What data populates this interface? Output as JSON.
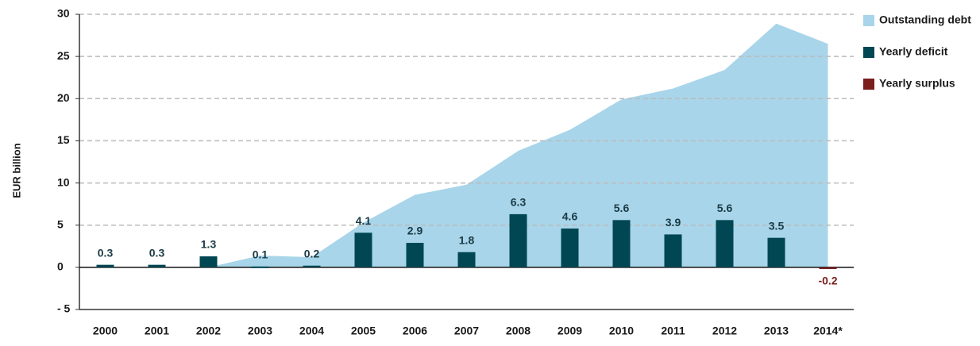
{
  "chart_data": {
    "type": "bar",
    "y_axis_label": "EUR billion",
    "categories": [
      "2000",
      "2001",
      "2002",
      "2003",
      "2004",
      "2005",
      "2006",
      "2007",
      "2008",
      "2009",
      "2010",
      "2011",
      "2012",
      "2013",
      "2014*"
    ],
    "area": {
      "name": "Outstanding debt",
      "color": "#a8d5ea",
      "values": [
        null,
        null,
        0,
        1.4,
        1.2,
        5.3,
        8.6,
        9.8,
        13.8,
        16.3,
        19.9,
        21.2,
        23.4,
        28.9,
        26.5
      ]
    },
    "series": [
      {
        "name": "Yearly deficit",
        "color": "#004653",
        "values": [
          0.3,
          0.3,
          1.3,
          0.1,
          0.2,
          4.1,
          2.9,
          1.8,
          6.3,
          4.6,
          5.6,
          3.9,
          5.6,
          3.5,
          null
        ]
      },
      {
        "name": "Yearly surplus",
        "color": "#7b1e1e",
        "values": [
          null,
          null,
          null,
          null,
          null,
          null,
          null,
          null,
          null,
          null,
          null,
          null,
          null,
          null,
          -0.2
        ]
      }
    ],
    "ylim": [
      -5,
      30
    ],
    "yticks": [
      {
        "value": -5,
        "label": "- 5"
      },
      0,
      5,
      10,
      15,
      20,
      25,
      30
    ],
    "grid": true,
    "legend": "right"
  }
}
